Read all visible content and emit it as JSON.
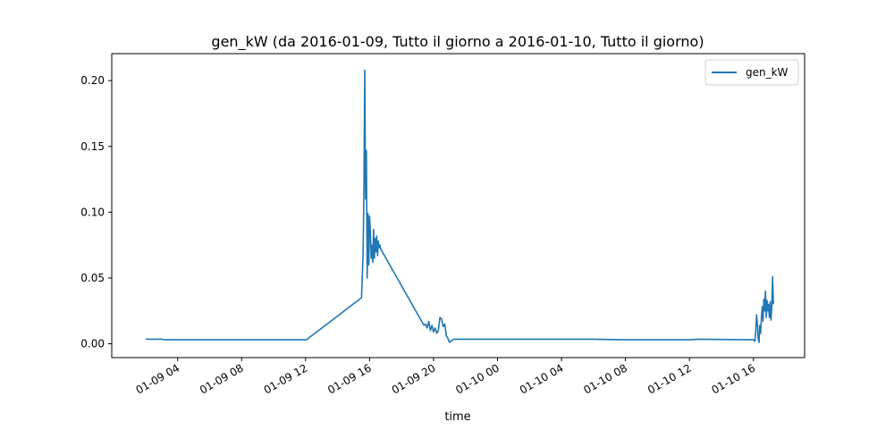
{
  "chart_data": {
    "type": "line",
    "title": "gen_kW (da 2016-01-09, Tutto il giorno a 2016-01-10, Tutto il giorno)",
    "xlabel": "time",
    "ylabel": "",
    "x_tick_labels": [
      "01-09 04",
      "01-09 08",
      "01-09 12",
      "01-09 16",
      "01-09 20",
      "01-10 00",
      "01-10 04",
      "01-10 08",
      "01-10 12",
      "01-10 16"
    ],
    "x_tick_hours": [
      4,
      8,
      12,
      16,
      20,
      24,
      28,
      32,
      36,
      40
    ],
    "xlim_hours": [
      -0.12,
      43.2
    ],
    "y_tick_labels": [
      "0.00",
      "0.05",
      "0.10",
      "0.15",
      "0.20"
    ],
    "y_ticks": [
      0,
      0.05,
      0.1,
      0.15,
      0.2
    ],
    "ylim": [
      -0.0105,
      0.2205
    ],
    "grid": false,
    "legend_position": "top-right",
    "series": [
      {
        "name": "gen_kW",
        "color": "#1f77b4",
        "x_hours": [
          2.0,
          3.0,
          3.2,
          12.0,
          12.1,
          15.5,
          15.6,
          15.65,
          15.7,
          15.75,
          15.8,
          15.85,
          15.9,
          15.95,
          16.0,
          16.05,
          16.1,
          16.15,
          16.2,
          16.25,
          16.3,
          16.35,
          16.4,
          16.45,
          16.5,
          16.55,
          16.6,
          16.65,
          16.7,
          19.4,
          19.5,
          19.6,
          19.7,
          19.8,
          19.9,
          20.0,
          20.1,
          20.2,
          20.3,
          20.4,
          20.5,
          20.6,
          20.7,
          20.8,
          20.9,
          21.0,
          21.1,
          21.2,
          21.3,
          21.4,
          21.6,
          30.0,
          32.0,
          36.0,
          36.5,
          40.0,
          40.1,
          40.15,
          40.2,
          40.25,
          40.3,
          40.35,
          40.4,
          40.45,
          40.5,
          40.55,
          40.6,
          40.65,
          40.7,
          40.75,
          40.8,
          40.85,
          40.9,
          40.95,
          41.0,
          41.05,
          41.1,
          41.15,
          41.2,
          41.25
        ],
        "values": [
          0.0035,
          0.0035,
          0.003,
          0.003,
          0.0035,
          0.035,
          0.07,
          0.12,
          0.208,
          0.11,
          0.147,
          0.05,
          0.099,
          0.06,
          0.097,
          0.085,
          0.065,
          0.075,
          0.062,
          0.087,
          0.065,
          0.08,
          0.07,
          0.082,
          0.067,
          0.078,
          0.073,
          0.075,
          0.072,
          0.014,
          0.015,
          0.012,
          0.017,
          0.01,
          0.014,
          0.009,
          0.012,
          0.008,
          0.01,
          0.02,
          0.019,
          0.013,
          0.015,
          0.006,
          0.004,
          0.001,
          0.002,
          0.003,
          0.0035,
          0.0035,
          0.0035,
          0.0035,
          0.003,
          0.003,
          0.0035,
          0.003,
          0.002,
          0.01,
          0.022,
          0.015,
          0.004,
          0.001,
          0.014,
          0.008,
          0.02,
          0.028,
          0.017,
          0.034,
          0.025,
          0.04,
          0.02,
          0.033,
          0.025,
          0.03,
          0.02,
          0.032,
          0.018,
          0.028,
          0.051,
          0.03
        ]
      }
    ]
  }
}
